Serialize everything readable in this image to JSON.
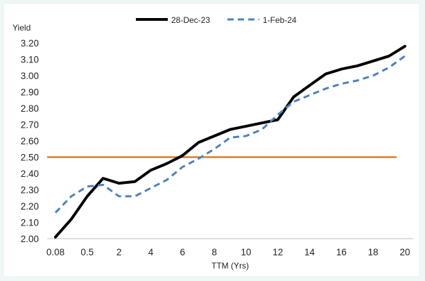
{
  "chart_data": {
    "type": "line",
    "xlabel": "TTM (Yrs)",
    "ylabel": "Yield",
    "x_tick_labels": [
      "0.08",
      "0.5",
      "2",
      "4",
      "6",
      "8",
      "10",
      "12",
      "14",
      "16",
      "18",
      "20"
    ],
    "y_tick_labels": [
      "2.00",
      "2.10",
      "2.20",
      "2.30",
      "2.40",
      "2.50",
      "2.60",
      "2.70",
      "2.80",
      "2.90",
      "3.00",
      "3.10",
      "3.20"
    ],
    "ylim": [
      2.0,
      3.2
    ],
    "x": [
      "0.08",
      "0.25",
      "0.5",
      "1",
      "2",
      "3",
      "4",
      "5",
      "6",
      "7",
      "8",
      "9",
      "10",
      "11",
      "12",
      "13",
      "14",
      "15",
      "16",
      "17",
      "18",
      "19",
      "20"
    ],
    "series": [
      {
        "name": "28-Dec-23",
        "color": "#000000",
        "style": "solid",
        "values": [
          2.01,
          2.12,
          2.26,
          2.37,
          2.34,
          2.35,
          2.42,
          2.46,
          2.51,
          2.59,
          2.63,
          2.67,
          2.69,
          2.71,
          2.73,
          2.87,
          2.94,
          3.01,
          3.04,
          3.06,
          3.09,
          3.12,
          3.18
        ]
      },
      {
        "name": "1-Feb-24",
        "color": "#4f81bd",
        "style": "dashed",
        "values": [
          2.16,
          2.26,
          2.32,
          2.33,
          2.26,
          2.26,
          2.31,
          2.36,
          2.44,
          2.49,
          2.55,
          2.62,
          2.63,
          2.67,
          2.76,
          2.84,
          2.88,
          2.92,
          2.95,
          2.97,
          3.0,
          3.05,
          3.12
        ]
      }
    ],
    "reference_line": {
      "y": 2.5,
      "color": "#e07b1c"
    },
    "legend_position": "top",
    "grid": false
  }
}
